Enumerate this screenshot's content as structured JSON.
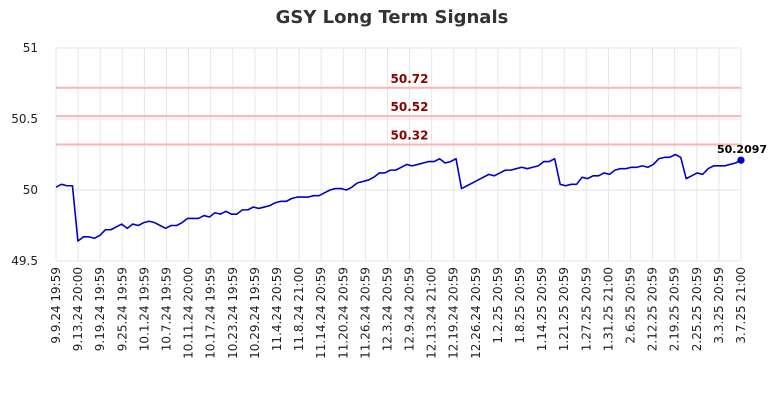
{
  "chart_data": {
    "type": "line",
    "title": "GSY Long Term Signals",
    "xlabel": "",
    "ylabel": "",
    "ylim": [
      49.5,
      51
    ],
    "yticks": [
      "49.5",
      "50",
      "50.5",
      "51"
    ],
    "grid": true,
    "legend": "none",
    "xtick_labels": [
      "9.9.24 19:59",
      "9.13.24 20:00",
      "9.19.24 19:59",
      "9.25.24 19:59",
      "10.1.24 19:59",
      "10.7.24 19:59",
      "10.11.24 20:00",
      "10.17.24 19:59",
      "10.23.24 19:59",
      "10.29.24 19:59",
      "11.4.24 20:59",
      "11.8.24 21:00",
      "11.14.24 20:59",
      "11.20.24 20:59",
      "11.26.24 20:59",
      "12.3.24 20:59",
      "12.9.24 20:59",
      "12.13.24 21:00",
      "12.19.24 20:59",
      "12.26.24 20:59",
      "1.2.25 20:59",
      "1.8.25 20:59",
      "1.14.25 20:59",
      "1.21.25 20:59",
      "1.27.25 20:59",
      "1.31.25 21:00",
      "2.6.25 20:59",
      "2.12.25 20:59",
      "2.19.25 20:59",
      "2.25.25 20:59",
      "3.3.25 20:59",
      "3.7.25 21:00"
    ],
    "reference_lines": [
      {
        "value": 50.72,
        "label": "50.72"
      },
      {
        "value": 50.52,
        "label": "50.52"
      },
      {
        "value": 50.32,
        "label": "50.32"
      }
    ],
    "series": [
      {
        "values": [
          50.02,
          50.04,
          50.03,
          50.03,
          49.64,
          49.67,
          49.67,
          49.66,
          49.68,
          49.72,
          49.72,
          49.74,
          49.76,
          49.73,
          49.76,
          49.75,
          49.77,
          49.78,
          49.77,
          49.75,
          49.73,
          49.75,
          49.75,
          49.77,
          49.8,
          49.8,
          49.8,
          49.82,
          49.81,
          49.84,
          49.83,
          49.85,
          49.83,
          49.83,
          49.86,
          49.86,
          49.88,
          49.87,
          49.88,
          49.89,
          49.91,
          49.92,
          49.92,
          49.94,
          49.95,
          49.95,
          49.95,
          49.96,
          49.96,
          49.98,
          50.0,
          50.01,
          50.01,
          50.0,
          50.02,
          50.05,
          50.06,
          50.07,
          50.09,
          50.12,
          50.12,
          50.14,
          50.14,
          50.16,
          50.18,
          50.17,
          50.18,
          50.19,
          50.2,
          50.2,
          50.22,
          50.19,
          50.2,
          50.22,
          50.01,
          50.03,
          50.05,
          50.07,
          50.09,
          50.11,
          50.1,
          50.12,
          50.14,
          50.14,
          50.15,
          50.16,
          50.15,
          50.16,
          50.17,
          50.2,
          50.2,
          50.22,
          50.04,
          50.03,
          50.04,
          50.04,
          50.09,
          50.08,
          50.1,
          50.1,
          50.12,
          50.11,
          50.14,
          50.15,
          50.15,
          50.16,
          50.16,
          50.17,
          50.16,
          50.18,
          50.22,
          50.23,
          50.23,
          50.25,
          50.23,
          50.08,
          50.1,
          50.12,
          50.11,
          50.15,
          50.17,
          50.17,
          50.17,
          50.18,
          50.19,
          50.2097
        ],
        "color": "#0000cc"
      }
    ],
    "last_value_label": "50.2097",
    "colors": {
      "line": "#0000cc",
      "reference_line": "#ffb3b3",
      "reference_label": "#8b0000",
      "title": "#333333",
      "grid": "#e6e6e6",
      "tick_text": "#222222"
    }
  }
}
